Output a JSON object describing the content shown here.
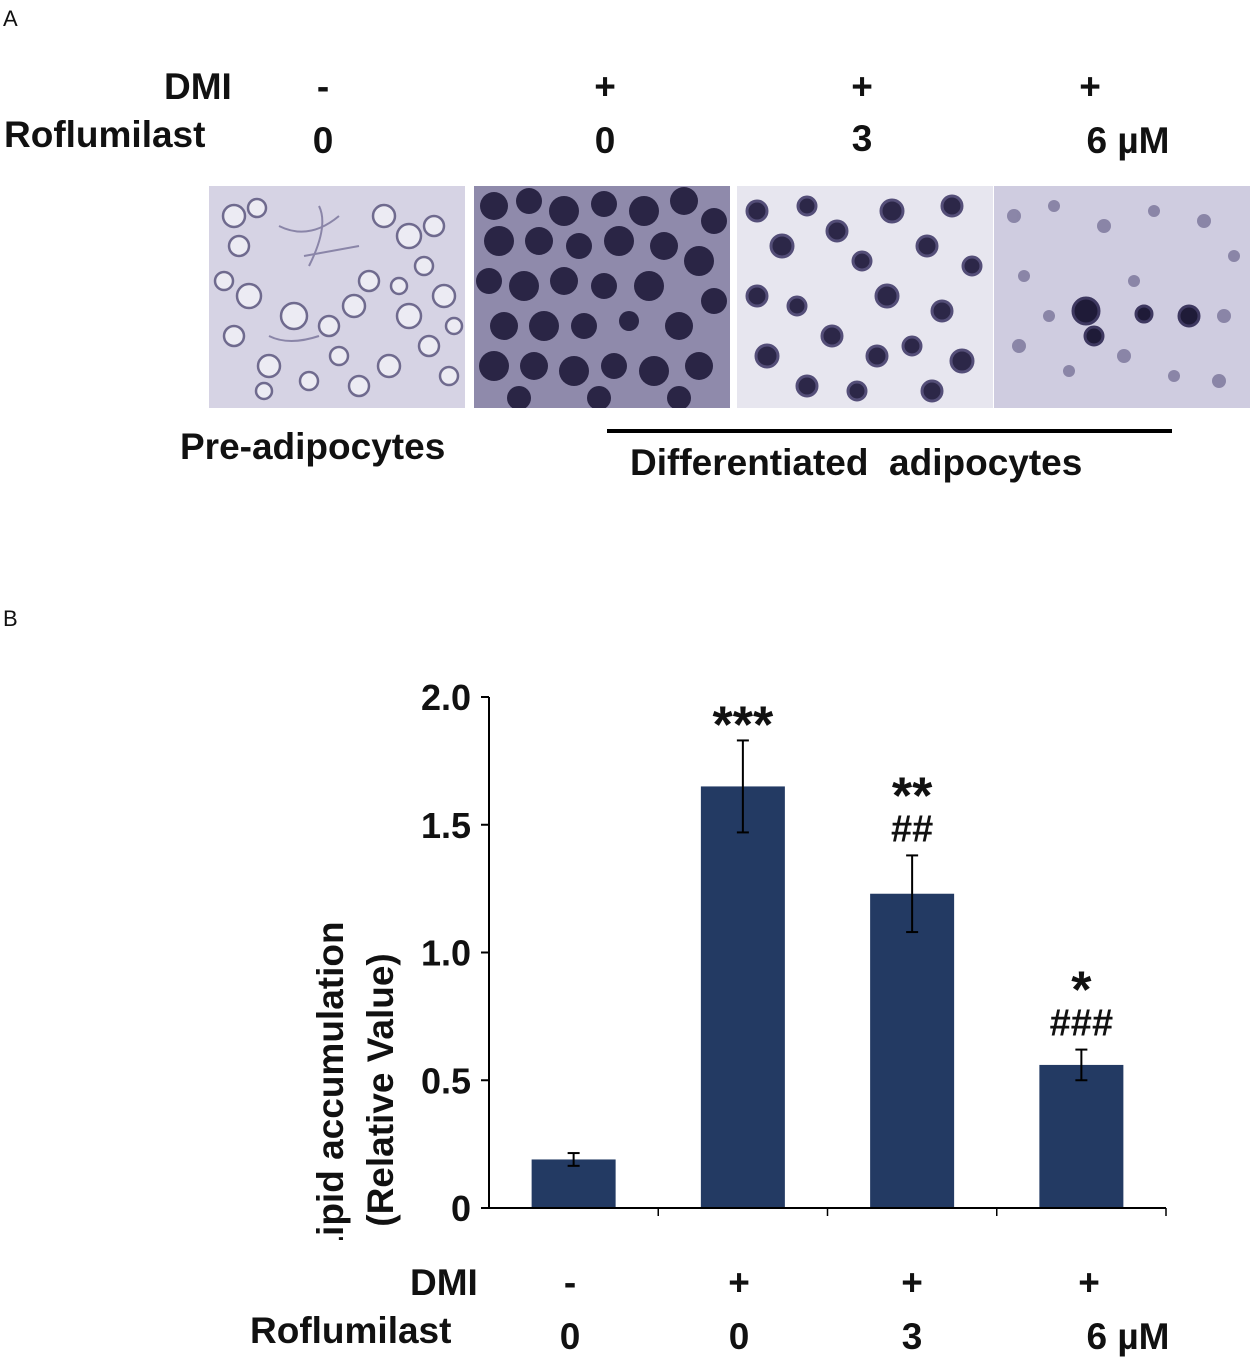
{
  "panel_a": {
    "letter": "A",
    "row1_label": "DMI",
    "row1_values": [
      "-",
      "+",
      "+",
      "+"
    ],
    "row2_label": "Roflumilast",
    "row2_values": [
      "0",
      "0",
      "3",
      "6 µM"
    ],
    "images": [
      {
        "name": "micrograph-pre-adipocytes",
        "stain": "light"
      },
      {
        "name": "micrograph-dmi-roflumilast-0",
        "stain": "heavy"
      },
      {
        "name": "micrograph-dmi-roflumilast-3",
        "stain": "medium"
      },
      {
        "name": "micrograph-dmi-roflumilast-6",
        "stain": "sparse"
      }
    ],
    "caption_left": "Pre-adipocytes",
    "caption_right": "Differentiated  adipocytes"
  },
  "panel_b": {
    "letter": "B",
    "row1_label": "DMI",
    "row1_values": [
      "-",
      "+",
      "+",
      "+"
    ],
    "row2_label": "Roflumilast",
    "row2_values": [
      "0",
      "0",
      "3",
      "6 µM"
    ]
  },
  "colors": {
    "bar": "#233a63",
    "axis": "#000000"
  },
  "chart_data": {
    "type": "bar",
    "categories": [
      "DMI - / Roflumilast 0",
      "DMI + / Roflumilast 0",
      "DMI + / Roflumilast 3",
      "DMI + / Roflumilast 6 µM"
    ],
    "values": [
      0.19,
      1.65,
      1.23,
      0.56
    ],
    "errors": [
      0.025,
      0.18,
      0.15,
      0.06
    ],
    "annotations": [
      [],
      [
        "***"
      ],
      [
        "**",
        "##"
      ],
      [
        "*",
        "###"
      ]
    ],
    "ylabel_line1": "Lipid accumulation",
    "ylabel_line2": "(Relative Value)",
    "ylim": [
      0,
      2.0
    ],
    "yticks": [
      0,
      0.5,
      1.0,
      1.5,
      2.0
    ],
    "ytick_labels": [
      "0",
      "0.5",
      "1.0",
      "1.5",
      "2.0"
    ],
    "grid": false,
    "legend": "none"
  }
}
